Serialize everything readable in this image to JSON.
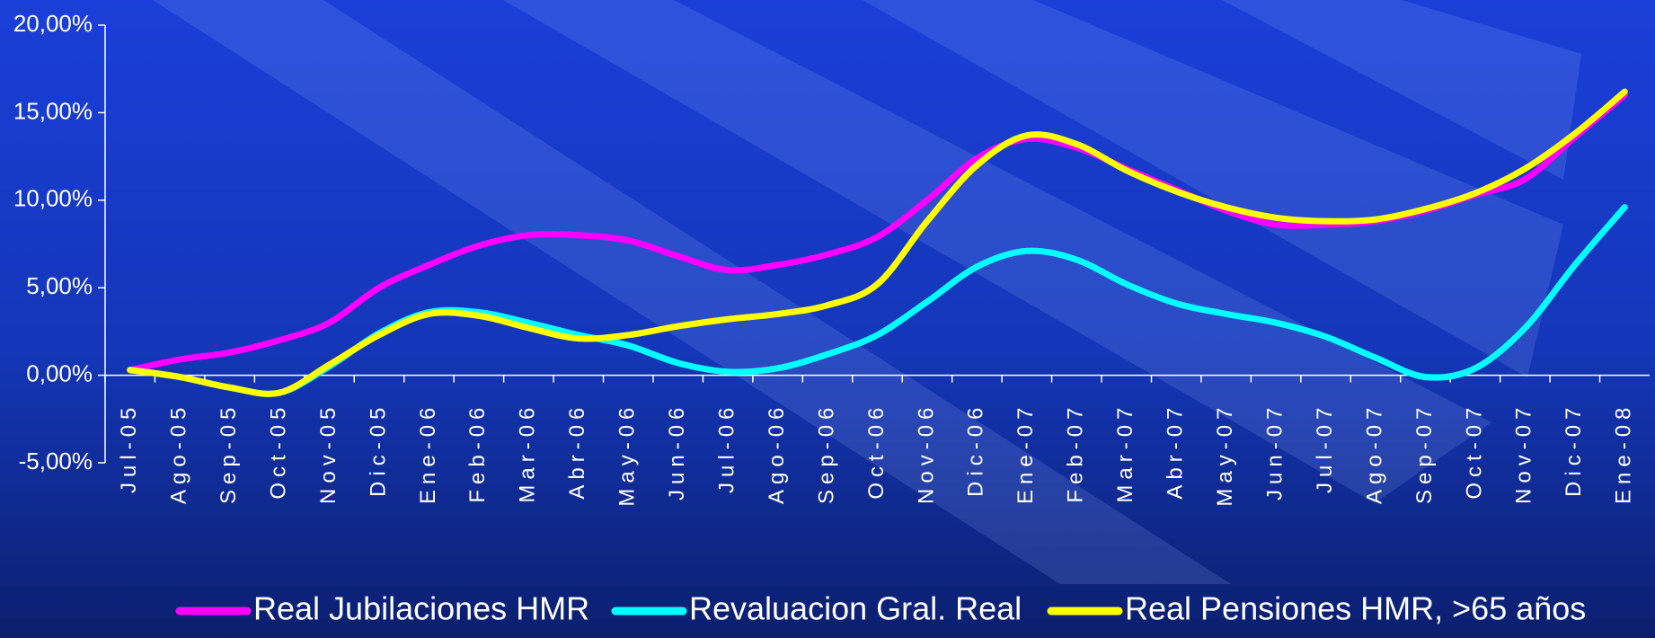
{
  "chart_data": {
    "type": "line",
    "categories": [
      "Jul-05",
      "Ago-05",
      "Sep-05",
      "Oct-05",
      "Nov-05",
      "Dic-05",
      "Ene-06",
      "Feb-06",
      "Mar-06",
      "Abr-06",
      "May-06",
      "Jun-06",
      "Jul-06",
      "Ago-06",
      "Sep-06",
      "Oct-06",
      "Nov-06",
      "Dic-06",
      "Ene-07",
      "Feb-07",
      "Mar-07",
      "Abr-07",
      "May-07",
      "Jun-07",
      "Jul-07",
      "Ago-07",
      "Sep-07",
      "Oct-07",
      "Nov-07",
      "Dic-07",
      "Ene-08"
    ],
    "series": [
      {
        "name": "Real Jubilaciones HMR",
        "color": "#ff00ff",
        "values": [
          0.3,
          0.9,
          1.3,
          2.0,
          3.0,
          5.0,
          6.3,
          7.4,
          8.0,
          8.0,
          7.7,
          6.8,
          6.0,
          6.3,
          6.9,
          7.9,
          10.0,
          12.4,
          13.5,
          13.0,
          11.8,
          10.6,
          9.4,
          8.6,
          8.6,
          8.8,
          9.4,
          10.3,
          11.2,
          13.6,
          16.0
        ]
      },
      {
        "name": "Revaluacion Gral. Real",
        "color": "#00ffff",
        "values": [
          0.3,
          -0.1,
          -0.7,
          -1.0,
          0.5,
          2.4,
          3.6,
          3.6,
          3.0,
          2.3,
          1.7,
          0.7,
          0.2,
          0.4,
          1.2,
          2.3,
          4.2,
          6.2,
          7.1,
          6.6,
          5.2,
          4.1,
          3.5,
          3.0,
          2.2,
          1.0,
          -0.1,
          0.4,
          2.7,
          6.3,
          9.6
        ]
      },
      {
        "name": "Real Pensiones HMR, >65 años",
        "color": "#ffff00",
        "values": [
          0.3,
          -0.1,
          -0.7,
          -1.0,
          0.6,
          2.3,
          3.5,
          3.4,
          2.7,
          2.1,
          2.3,
          2.8,
          3.2,
          3.5,
          4.0,
          5.2,
          8.8,
          12.0,
          13.7,
          13.2,
          11.7,
          10.5,
          9.6,
          9.0,
          8.8,
          8.9,
          9.5,
          10.4,
          11.8,
          13.8,
          16.2
        ]
      }
    ],
    "ylim": [
      -5,
      20
    ],
    "yticks": [
      {
        "value": -5,
        "label": "-5,00%"
      },
      {
        "value": 0,
        "label": "0,00%"
      },
      {
        "value": 5,
        "label": "5,00%"
      },
      {
        "value": 10,
        "label": "10,00%"
      },
      {
        "value": 15,
        "label": "15,00%"
      },
      {
        "value": 20,
        "label": "20,00%"
      }
    ],
    "grid": false,
    "legend": "bottom"
  }
}
